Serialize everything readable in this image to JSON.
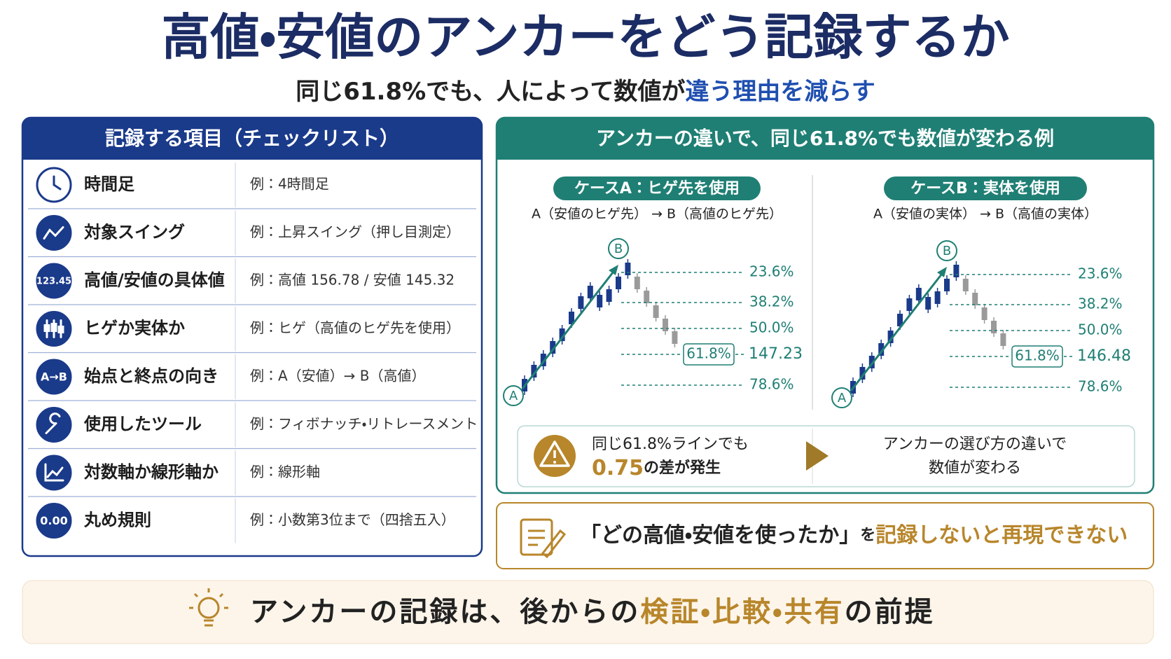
{
  "header": {
    "title": "高値・安値のアンカーをどう記録するか",
    "subtitle_plain": "同じ61.8%でも、人によって数値が",
    "subtitle_accent": "違う理由を減らす"
  },
  "checklist": {
    "title": "記録する項目（チェックリスト）",
    "rows": [
      {
        "label": "時間足",
        "example": "例：4時間足"
      },
      {
        "label": "対象スイング",
        "example": "例：上昇スイング（押し目測定）"
      },
      {
        "icon_text": "123.45",
        "label": "高値/安値の具体値",
        "example": "例：高値 156.78 / 安値 145.32"
      },
      {
        "label": "ヒゲか実体か",
        "example": "例：ヒゲ（高値のヒゲ先を使用）"
      },
      {
        "icon_text": "A→B",
        "label": "始点と終点の向き",
        "example": "例：A（安値）→ B（高値）"
      },
      {
        "label": "使用したツール",
        "example": "例：フィボナッチ・リトレースメント"
      },
      {
        "label": "対数軸か線形軸か",
        "example": "例：線形軸"
      },
      {
        "icon_text": "0.00",
        "label": "丸め規則",
        "example": "例：小数第3位まで（四捨五入）"
      }
    ]
  },
  "comparison": {
    "title": "アンカーの違いで、同じ61.8%でも数値が変わる例",
    "cases": [
      {
        "label": "ケースA：ヒゲ先を使用",
        "anchors": "A（安値のヒゲ先） → B（高値のヒゲ先）",
        "start": "A",
        "end": "B",
        "levels": [
          "23.6%",
          "38.2%",
          "50.0%",
          "61.8%",
          "78.6%"
        ],
        "price": "147.23"
      },
      {
        "label": "ケースB：実体を使用",
        "anchors": "A（安値の実体） → B（高値の実体）",
        "start": "A",
        "end": "B",
        "levels": [
          "23.6%",
          "38.2%",
          "50.0%",
          "61.8%",
          "78.6%"
        ],
        "price": "146.48"
      }
    ],
    "note": {
      "line1": "同じ61.8%ラインでも",
      "diff": "0.75",
      "line2_rest": "の差が発生",
      "right1": "アンカーの選び方の違いで",
      "right2": "数値が変わる"
    }
  },
  "warning": {
    "quote": "「どの高値・安値を使ったか」",
    "particle": "を",
    "accent": "記録しないと再現できない"
  },
  "footer": {
    "plain": "アンカーの記録は、後からの",
    "accent": "検証・比較・共有",
    "end": "の前提"
  }
}
